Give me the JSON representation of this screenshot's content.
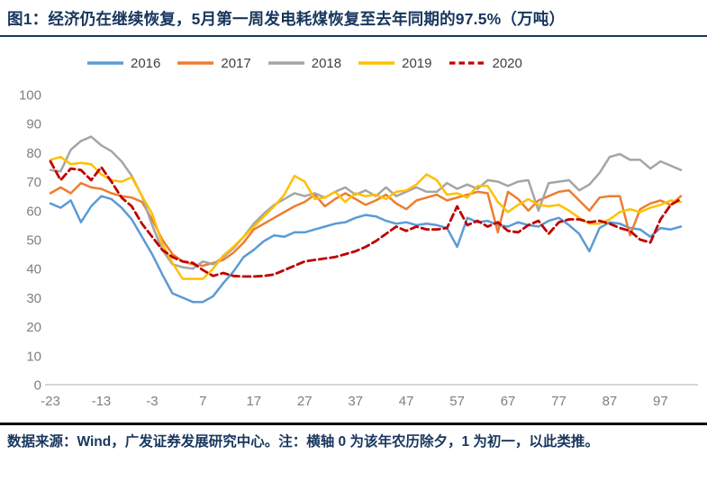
{
  "figure": {
    "title": "图1：经济仍在继续恢复，5月第一周发电耗煤恢复至去年同期的97.5%（万吨）",
    "source_note": "数据来源：Wind，广发证券发展研究中心。注：横轴 0 为该年农历除夕，1 为初一，以此类推。"
  },
  "colors": {
    "title_text": "#17365D",
    "footnote_text": "#17365D",
    "legend_text": "#404040",
    "axis_label": "#7F7F7F",
    "axis_line": "#C9C9C9",
    "title_rule": "#17365D",
    "footer_rule": "#000000"
  },
  "chart_data": {
    "type": "line",
    "title": "图1：经济仍在继续恢复，5月第一周发电耗煤恢复至去年同期的97.5%（万吨）",
    "xlabel": "",
    "ylabel": "",
    "xlim": [
      -23,
      104
    ],
    "ylim": [
      0,
      100
    ],
    "grid": false,
    "legend_position": "top",
    "x_ticks": [
      -23,
      -13,
      -3,
      7,
      17,
      27,
      37,
      47,
      57,
      67,
      77,
      87,
      97
    ],
    "y_ticks": [
      0,
      10,
      20,
      30,
      40,
      50,
      60,
      70,
      80,
      90,
      100
    ],
    "x_axis_note": "横轴 0 为该年农历除夕，1 为初一",
    "x": [
      -23,
      -21,
      -19,
      -17,
      -15,
      -13,
      -11,
      -9,
      -7,
      -5,
      -3,
      -1,
      1,
      3,
      5,
      7,
      9,
      11,
      13,
      15,
      17,
      19,
      21,
      23,
      25,
      27,
      29,
      31,
      33,
      35,
      37,
      39,
      41,
      43,
      45,
      47,
      49,
      51,
      53,
      55,
      57,
      59,
      61,
      63,
      65,
      67,
      69,
      71,
      73,
      75,
      77,
      79,
      81,
      83,
      85,
      87,
      89,
      91,
      93,
      95,
      97,
      99,
      101
    ],
    "series": [
      {
        "name": "2016",
        "color": "#5B9BD5",
        "style": "solid",
        "values": [
          62.5,
          61,
          63.5,
          56,
          61.5,
          65,
          64,
          61,
          57,
          51,
          45,
          38,
          31.5,
          30,
          28.5,
          28.5,
          30.5,
          35,
          39,
          44,
          46.5,
          49.5,
          51.5,
          51,
          52.5,
          52.5,
          53.5,
          54.5,
          55.5,
          56,
          57.5,
          58.5,
          58,
          56.5,
          55.5,
          56,
          55,
          55.5,
          55,
          54,
          47.5,
          57.5,
          56,
          56.5,
          55,
          54.5,
          56,
          55,
          54.5,
          56.5,
          57.5,
          55,
          52,
          46,
          54,
          56,
          55.5,
          54,
          53.5,
          51,
          54,
          53.5,
          54.5
        ]
      },
      {
        "name": "2017",
        "color": "#ED7D31",
        "style": "solid",
        "values": [
          66,
          68,
          66,
          69.5,
          68,
          67.5,
          66,
          65,
          64.5,
          63,
          57,
          50,
          45,
          42.5,
          41.5,
          41,
          42,
          43,
          45.5,
          49,
          53.5,
          55.5,
          57.5,
          59.5,
          61.5,
          63,
          65.5,
          61.5,
          64,
          66,
          64,
          62,
          63.5,
          65.5,
          62.5,
          60.5,
          63.5,
          64.5,
          65.5,
          63.5,
          64.5,
          65.5,
          66.5,
          66,
          52.5,
          66.5,
          64,
          60,
          63.5,
          65,
          66.5,
          67,
          63.5,
          60,
          64.5,
          65,
          65,
          51.5,
          60.5,
          62.5,
          63.5,
          62,
          65
        ]
      },
      {
        "name": "2018",
        "color": "#A5A5A5",
        "style": "solid",
        "values": [
          74,
          73.5,
          81,
          84,
          85.5,
          82.5,
          80.5,
          77,
          72,
          65,
          55,
          46.5,
          41.5,
          40.5,
          40,
          42.5,
          41.5,
          44,
          47,
          51,
          55.5,
          59,
          62,
          64,
          66,
          65,
          66,
          64.5,
          66.5,
          68,
          65.5,
          67,
          65,
          68,
          65,
          66.5,
          68,
          66.5,
          66.5,
          69.5,
          67.5,
          69,
          67.5,
          70.5,
          70,
          68.5,
          70,
          70.5,
          60,
          69.5,
          70,
          70.5,
          67,
          69,
          73,
          78.5,
          79.5,
          77.5,
          77.5,
          74.5,
          77,
          75.5,
          74
        ]
      },
      {
        "name": "2019",
        "color": "#FFC000",
        "style": "solid",
        "values": [
          77.5,
          78.5,
          76,
          76.5,
          76,
          72.5,
          70.5,
          70,
          71.5,
          65,
          59,
          48.5,
          42,
          36.5,
          36.5,
          36.5,
          40,
          44.5,
          47.5,
          51,
          54.5,
          58,
          61.5,
          65.5,
          72,
          70,
          64,
          64.5,
          66.5,
          63,
          66,
          65,
          65.5,
          64,
          66.5,
          67,
          69,
          72.5,
          70.5,
          65.5,
          66,
          64.5,
          68.5,
          68.5,
          63,
          59.5,
          62,
          64,
          62,
          61.5,
          62,
          60,
          57.5,
          55.5,
          55.5,
          57,
          59.5,
          60.5,
          59.5,
          61,
          62,
          63.5,
          63
        ]
      },
      {
        "name": "2020",
        "color": "#C00000",
        "style": "dashed",
        "values": [
          77,
          70.5,
          74.5,
          74,
          70.5,
          75,
          70,
          64.5,
          61.5,
          55.5,
          51,
          46.5,
          44,
          42.5,
          42,
          39.5,
          37.5,
          38.5,
          37.5,
          37.3,
          37.3,
          37.5,
          38,
          39.5,
          41,
          42.5,
          43,
          43.5,
          44,
          45,
          46,
          47.5,
          49.5,
          52,
          54.5,
          53,
          54.5,
          53.5,
          53.5,
          54,
          61.5,
          55,
          56.5,
          54.5,
          56,
          53,
          52.5,
          55,
          56.5,
          52,
          56,
          57,
          57,
          56,
          56.5,
          55.5,
          54,
          53,
          50,
          49,
          57,
          62,
          64
        ]
      }
    ]
  }
}
